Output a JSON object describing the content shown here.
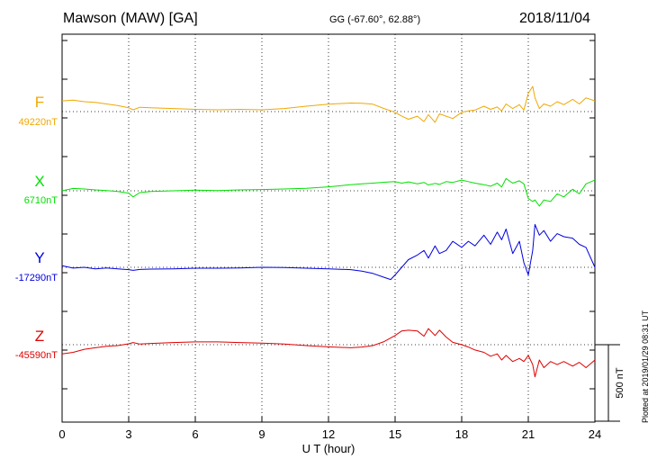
{
  "header": {
    "station": "Mawson (MAW)  [GA]",
    "coords": "GG (-67.60°,  62.88°)",
    "date": "2018/11/04",
    "plotted": "Plotted at 2019/01/29 08:31  UT"
  },
  "chart_data": {
    "type": "line",
    "xlabel": "U T (hour)",
    "xlim": [
      0,
      24
    ],
    "xticks": [
      0,
      3,
      6,
      9,
      12,
      15,
      18,
      21,
      24
    ],
    "scale_bar": "500 nT",
    "scale_bar_nT": 500,
    "grid": true,
    "series": [
      {
        "name": "F",
        "baseline_label": "49220nT",
        "baseline_nT": 49220,
        "color": "#f0a800",
        "x": [
          0,
          0.5,
          1,
          1.5,
          2,
          2.5,
          3,
          3.2,
          3.5,
          4,
          5,
          6,
          7,
          8,
          9,
          10,
          11,
          12,
          13,
          13.5,
          14,
          14.5,
          15,
          15.3,
          15.6,
          16,
          16.3,
          16.5,
          16.8,
          17,
          17.3,
          17.6,
          18,
          18.3,
          18.6,
          19,
          19.3,
          19.6,
          19.8,
          20,
          20.3,
          20.6,
          20.8,
          21,
          21.2,
          21.3,
          21.5,
          21.7,
          22,
          22.3,
          22.6,
          23,
          23.3,
          23.6,
          24
        ],
        "y": [
          49290,
          49295,
          49285,
          49280,
          49270,
          49260,
          49245,
          49232,
          49248,
          49245,
          49240,
          49235,
          49232,
          49235,
          49232,
          49240,
          49255,
          49268,
          49276,
          49275,
          49268,
          49240,
          49215,
          49190,
          49170,
          49190,
          49155,
          49200,
          49150,
          49205,
          49190,
          49175,
          49215,
          49225,
          49230,
          49255,
          49235,
          49250,
          49225,
          49270,
          49240,
          49265,
          49230,
          49340,
          49385,
          49310,
          49240,
          49270,
          49255,
          49285,
          49265,
          49300,
          49270,
          49310,
          49290
        ]
      },
      {
        "name": "X",
        "baseline_label": "6710nT",
        "baseline_nT": 6710,
        "color": "#00e000",
        "x": [
          0,
          0.5,
          1,
          1.5,
          2,
          2.5,
          3,
          3.2,
          3.5,
          4,
          5,
          6,
          7,
          8,
          9,
          10,
          11,
          12,
          13,
          13.5,
          14,
          14.5,
          15,
          15.3,
          15.6,
          16,
          16.3,
          16.5,
          16.8,
          17,
          17.3,
          17.6,
          18,
          18.3,
          18.6,
          19,
          19.3,
          19.6,
          19.8,
          20,
          20.3,
          20.6,
          20.8,
          21,
          21.2,
          21.3,
          21.5,
          21.7,
          22,
          22.3,
          22.6,
          23,
          23.3,
          23.6,
          24
        ],
        "y": [
          6710,
          6725,
          6722,
          6716,
          6712,
          6705,
          6695,
          6670,
          6698,
          6705,
          6710,
          6715,
          6712,
          6716,
          6718,
          6722,
          6726,
          6736,
          6750,
          6755,
          6760,
          6766,
          6770,
          6760,
          6768,
          6755,
          6765,
          6748,
          6758,
          6752,
          6770,
          6765,
          6780,
          6770,
          6760,
          6750,
          6740,
          6760,
          6735,
          6790,
          6760,
          6775,
          6755,
          6660,
          6640,
          6650,
          6610,
          6650,
          6640,
          6690,
          6670,
          6720,
          6690,
          6755,
          6780
        ]
      },
      {
        "name": "Y",
        "baseline_label": "-17290nT",
        "baseline_nT": -17290,
        "color": "#0000e0",
        "x": [
          0,
          0.5,
          1,
          1.5,
          2,
          2.5,
          3,
          3.2,
          3.5,
          4,
          5,
          6,
          7,
          8,
          9,
          10,
          11,
          12,
          13,
          13.5,
          14,
          14.5,
          14.8,
          15,
          15.3,
          15.6,
          16,
          16.3,
          16.5,
          16.8,
          17,
          17.3,
          17.6,
          18,
          18.3,
          18.6,
          19,
          19.3,
          19.6,
          19.8,
          20,
          20.3,
          20.6,
          20.8,
          21,
          21.2,
          21.3,
          21.5,
          21.7,
          22,
          22.3,
          22.6,
          23,
          23.3,
          23.6,
          24
        ],
        "y": [
          -17280,
          -17295,
          -17290,
          -17300,
          -17294,
          -17300,
          -17305,
          -17310,
          -17304,
          -17302,
          -17300,
          -17296,
          -17296,
          -17294,
          -17290,
          -17292,
          -17296,
          -17300,
          -17305,
          -17315,
          -17330,
          -17355,
          -17370,
          -17340,
          -17290,
          -17240,
          -17210,
          -17180,
          -17230,
          -17150,
          -17200,
          -17180,
          -17120,
          -17160,
          -17120,
          -17150,
          -17080,
          -17140,
          -17060,
          -17110,
          -17040,
          -17200,
          -17120,
          -17260,
          -17340,
          -17180,
          -17010,
          -17080,
          -17050,
          -17120,
          -17070,
          -17090,
          -17100,
          -17140,
          -17160,
          -17290
        ]
      },
      {
        "name": "Z",
        "baseline_label": "-45590nT",
        "baseline_nT": -45590,
        "color": "#e00000",
        "x": [
          0,
          0.5,
          1,
          1.5,
          2,
          2.5,
          3,
          3.2,
          3.5,
          4,
          5,
          6,
          7,
          8,
          9,
          10,
          11,
          12,
          13,
          13.5,
          14,
          14.5,
          15,
          15.3,
          15.6,
          16,
          16.3,
          16.5,
          16.8,
          17,
          17.3,
          17.6,
          18,
          18.3,
          18.6,
          19,
          19.3,
          19.6,
          19.8,
          20,
          20.3,
          20.6,
          20.8,
          21,
          21.2,
          21.3,
          21.5,
          21.7,
          22,
          22.3,
          22.6,
          23,
          23.3,
          23.6,
          24
        ],
        "y": [
          -45650,
          -45640,
          -45620,
          -45610,
          -45600,
          -45596,
          -45584,
          -45576,
          -45586,
          -45582,
          -45576,
          -45572,
          -45572,
          -45576,
          -45580,
          -45586,
          -45596,
          -45604,
          -45610,
          -45605,
          -45596,
          -45570,
          -45530,
          -45500,
          -45495,
          -45500,
          -45535,
          -45485,
          -45530,
          -45495,
          -45540,
          -45575,
          -45590,
          -45605,
          -45625,
          -45640,
          -45665,
          -45650,
          -45690,
          -45660,
          -45700,
          -45680,
          -45700,
          -45660,
          -45720,
          -45800,
          -45690,
          -45740,
          -45700,
          -45720,
          -45700,
          -45730,
          -45705,
          -45740,
          -45690
        ]
      }
    ]
  }
}
